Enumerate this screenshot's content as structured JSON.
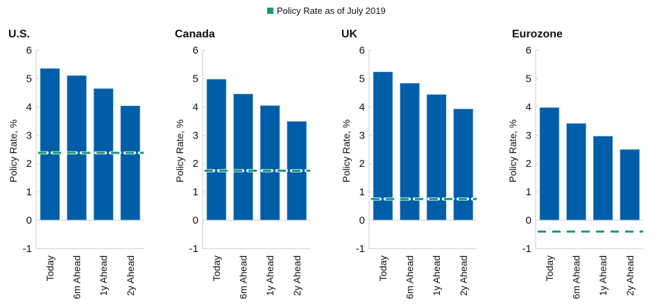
{
  "chart_data": {
    "legend": {
      "label": "Policy Rate as of July 2019",
      "color": "#1a9a7a",
      "placement": "top-center"
    },
    "bar_color": "#005ea8",
    "type": "bar",
    "panels": [
      {
        "title": "U.S.",
        "ylabel": "Policy Rate, %",
        "ylim": [
          -1,
          6
        ],
        "yticks": [
          "6",
          "5",
          "4",
          "3",
          "2",
          "1",
          "0",
          "-1"
        ],
        "categories": [
          "Today",
          "6m Ahead",
          "1y Ahead",
          "2y Ahead"
        ],
        "values": [
          5.36,
          5.11,
          4.65,
          4.04
        ],
        "policy_rate": 2.38
      },
      {
        "title": "Canada",
        "ylabel": "Policy Rate, %",
        "ylim": [
          -1,
          6
        ],
        "yticks": [
          "6",
          "5",
          "4",
          "3",
          "2",
          "1",
          "0",
          "-1"
        ],
        "categories": [
          "Today",
          "6m Ahead",
          "1y Ahead",
          "2y Ahead"
        ],
        "values": [
          4.98,
          4.46,
          4.05,
          3.49
        ],
        "policy_rate": 1.75
      },
      {
        "title": "UK",
        "ylabel": "Policy Rate, %",
        "ylim": [
          -1,
          6
        ],
        "yticks": [
          "6",
          "5",
          "4",
          "3",
          "2",
          "1",
          "0",
          "-1"
        ],
        "categories": [
          "Today",
          "6m Ahead",
          "1y Ahead",
          "2y Ahead"
        ],
        "values": [
          5.24,
          4.84,
          4.44,
          3.93
        ],
        "policy_rate": 0.75
      },
      {
        "title": "Eurozone",
        "ylabel": "Policy Rate, %",
        "ylim": [
          -1,
          6
        ],
        "yticks": [
          "6",
          "5",
          "4",
          "3",
          "2",
          "1",
          "0",
          "-1"
        ],
        "categories": [
          "Today",
          "6m Ahead",
          "1y Ahead",
          "2y Ahead"
        ],
        "values": [
          3.98,
          3.42,
          2.97,
          2.5
        ],
        "policy_rate": -0.4
      }
    ]
  }
}
